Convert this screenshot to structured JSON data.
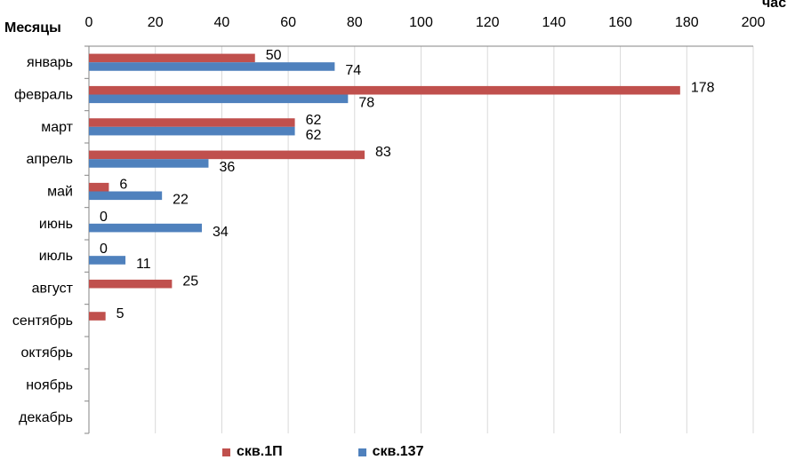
{
  "chart_data": {
    "type": "bar",
    "orientation": "horizontal",
    "ylabel": "Месяцы",
    "xlabel": "час",
    "xlim": [
      0,
      200
    ],
    "xticks": [
      0,
      20,
      40,
      60,
      80,
      100,
      120,
      140,
      160,
      180,
      200
    ],
    "grid": true,
    "legend_position": "bottom",
    "categories": [
      "январь",
      "февраль",
      "март",
      "апрель",
      "май",
      "июнь",
      "июль",
      "август",
      "сентябрь",
      "октябрь",
      "ноябрь",
      "декабрь"
    ],
    "series": [
      {
        "name": "скв.1П",
        "color": "#C0504D",
        "values": [
          50,
          178,
          62,
          83,
          6,
          0,
          0,
          25,
          5,
          null,
          null,
          null
        ]
      },
      {
        "name": "скв.137",
        "color": "#4F81BD",
        "values": [
          74,
          78,
          62,
          36,
          22,
          34,
          11,
          null,
          null,
          null,
          null,
          null
        ]
      }
    ]
  }
}
